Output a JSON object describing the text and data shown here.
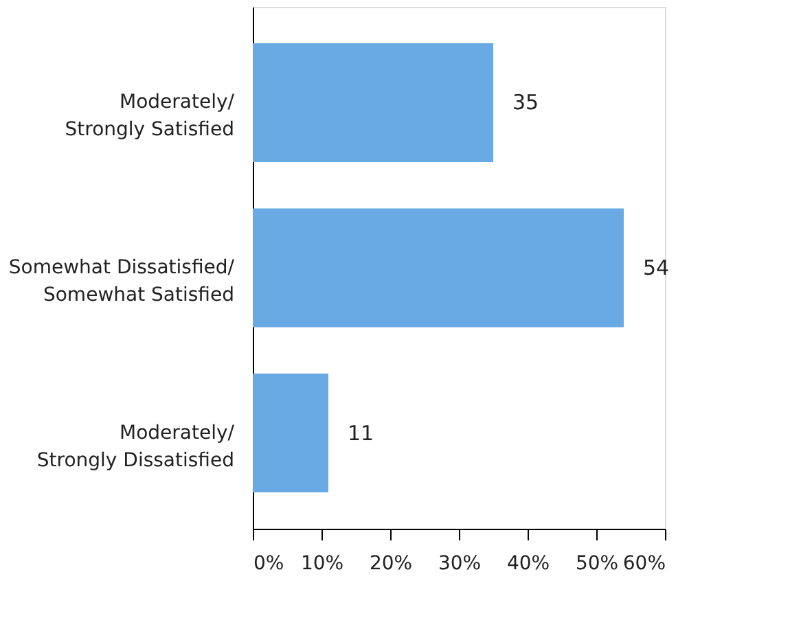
{
  "chart_data": {
    "type": "bar",
    "orientation": "horizontal",
    "categories": [
      "Moderately/ Strongly Satisfied",
      "Somewhat Dissatisfied/ Somewhat Satisfied",
      "Moderately/ Strongly Dissatisfied"
    ],
    "values": [
      35,
      54,
      11
    ],
    "color": "#6aaae4",
    "data_labels": true,
    "xlim": [
      0,
      60
    ],
    "xticks": [
      {
        "value": 0,
        "label": "0%"
      },
      {
        "value": 10,
        "label": "10%"
      },
      {
        "value": 20,
        "label": "20%"
      },
      {
        "value": 30,
        "label": "30%"
      },
      {
        "value": 40,
        "label": "40%"
      },
      {
        "value": 50,
        "label": "50%"
      },
      {
        "value": 60,
        "label": "60%"
      }
    ],
    "grid": false
  }
}
